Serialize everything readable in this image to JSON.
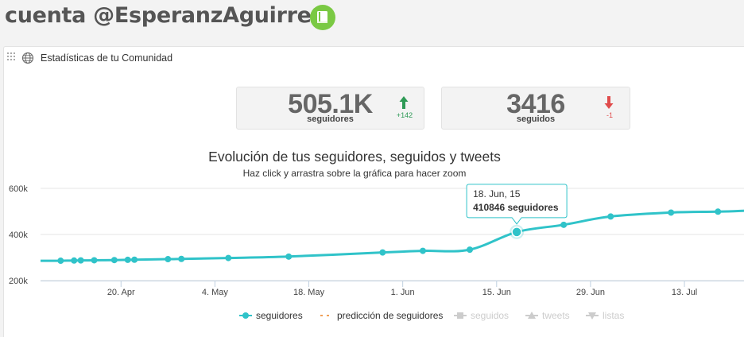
{
  "header": {
    "title": "cuenta @EsperanzAguirre"
  },
  "panel": {
    "title": "Estadísticas de tu Comunidad"
  },
  "stats": {
    "followers": {
      "value": "505.1K",
      "label": "seguidores",
      "delta": "+142",
      "trend": "up"
    },
    "following": {
      "value": "3416",
      "label": "seguidos",
      "delta": "-1",
      "trend": "down"
    }
  },
  "colors": {
    "series": "#30c3c9",
    "up": "#2e9a56",
    "down": "#e04b4b",
    "prediction": "#f0a057",
    "inactive": "#cccccc",
    "brand": "#7ac943"
  },
  "tooltip": {
    "date": "18. Jun, 15",
    "value": "410846",
    "unit": "seguidores"
  },
  "chart_data": {
    "type": "line",
    "title": "Evolución de tus seguidores, seguidos y tweets",
    "subtitle": "Haz click y arrastra sobre la gráfica para hacer zoom",
    "y_ticks": [
      {
        "value": 200000,
        "label": "200k"
      },
      {
        "value": 400000,
        "label": "400k"
      },
      {
        "value": 600000,
        "label": "600k"
      }
    ],
    "x_ticks": [
      {
        "date": "2015-04-20",
        "label": "20. Apr"
      },
      {
        "date": "2015-05-04",
        "label": "4. May"
      },
      {
        "date": "2015-05-18",
        "label": "18. May"
      },
      {
        "date": "2015-06-01",
        "label": "1. Jun"
      },
      {
        "date": "2015-06-15",
        "label": "15. Jun"
      },
      {
        "date": "2015-06-29",
        "label": "29. Jun"
      },
      {
        "date": "2015-07-13",
        "label": "13. Jul"
      }
    ],
    "x_range": [
      "2015-04-08",
      "2015-07-22"
    ],
    "y_range": [
      200000,
      600000
    ],
    "series": [
      {
        "name": "seguidores",
        "points": [
          {
            "x": "2015-04-11",
            "y": 286000
          },
          {
            "x": "2015-04-13",
            "y": 287000
          },
          {
            "x": "2015-04-14",
            "y": 287500
          },
          {
            "x": "2015-04-16",
            "y": 288000
          },
          {
            "x": "2015-04-19",
            "y": 289000
          },
          {
            "x": "2015-04-21",
            "y": 290000
          },
          {
            "x": "2015-04-22",
            "y": 290500
          },
          {
            "x": "2015-04-27",
            "y": 293000
          },
          {
            "x": "2015-04-29",
            "y": 294000
          },
          {
            "x": "2015-05-06",
            "y": 298000
          },
          {
            "x": "2015-05-15",
            "y": 304000
          },
          {
            "x": "2015-05-29",
            "y": 322000
          },
          {
            "x": "2015-06-04",
            "y": 329000
          },
          {
            "x": "2015-06-11",
            "y": 334000
          },
          {
            "x": "2015-06-18",
            "y": 410846
          },
          {
            "x": "2015-06-25",
            "y": 442000
          },
          {
            "x": "2015-07-02",
            "y": 478000
          },
          {
            "x": "2015-07-11",
            "y": 495000
          },
          {
            "x": "2015-07-18",
            "y": 499000
          }
        ]
      }
    ],
    "line_end": {
      "x": "2015-07-22",
      "y": 503000
    },
    "legend": [
      {
        "label": "seguidores",
        "symbol": "circle",
        "active": true
      },
      {
        "label": "predicción de seguidores",
        "symbol": "dash",
        "active": true
      },
      {
        "label": "seguidos",
        "symbol": "square",
        "active": false
      },
      {
        "label": "tweets",
        "symbol": "triangle",
        "active": false
      },
      {
        "label": "listas",
        "symbol": "triangle-down",
        "active": false
      }
    ],
    "grid": true
  }
}
